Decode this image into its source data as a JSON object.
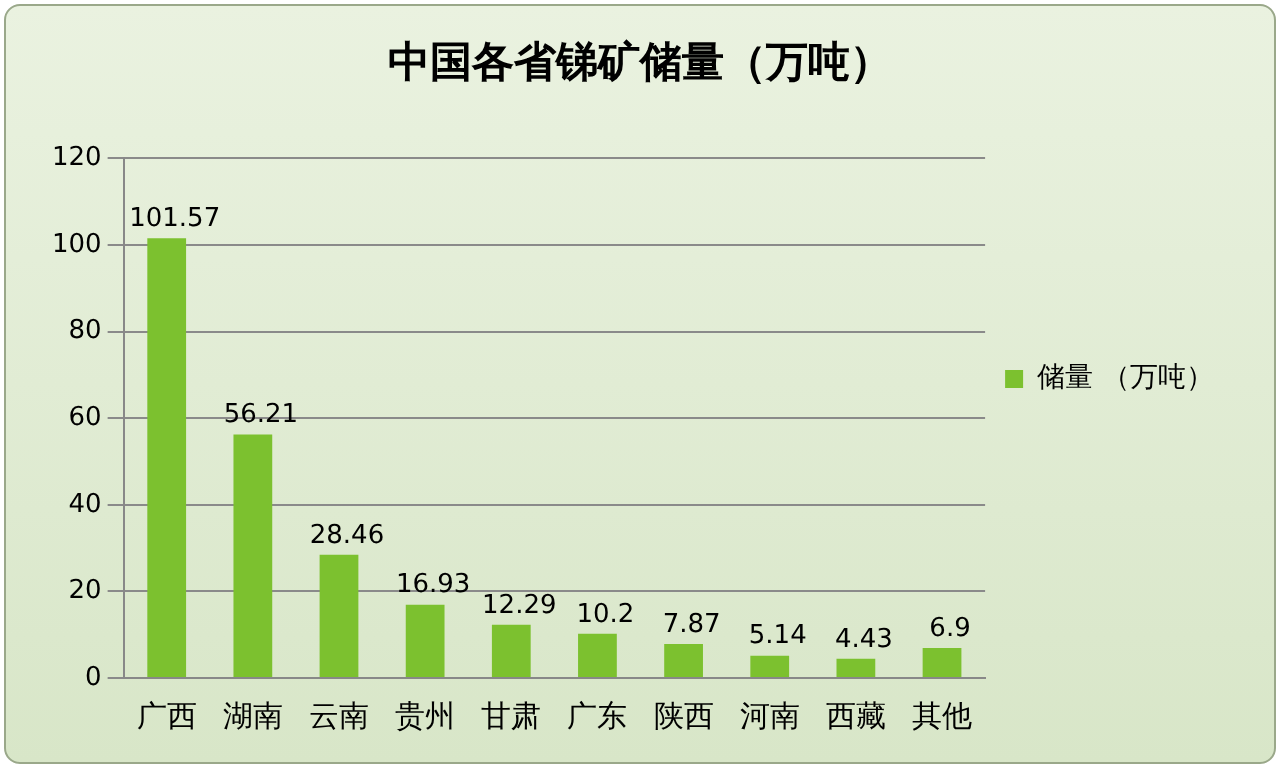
{
  "chart_data": {
    "type": "bar",
    "title": "中国各省锑矿储量（万吨）",
    "categories": [
      "广西",
      "湖南",
      "云南",
      "贵州",
      "甘肃",
      "广东",
      "陕西",
      "河南",
      "西藏",
      "其他"
    ],
    "series": [
      {
        "name": "储量 （万吨）",
        "color": "#7cc12f",
        "values": [
          101.57,
          56.21,
          28.46,
          16.93,
          12.29,
          10.2,
          7.87,
          5.14,
          4.43,
          6.9
        ]
      }
    ],
    "ylim": [
      0,
      120
    ],
    "yticks": [
      0,
      20,
      40,
      60,
      80,
      100,
      120
    ],
    "grid": "y",
    "legend": "right",
    "data_labels": true
  }
}
